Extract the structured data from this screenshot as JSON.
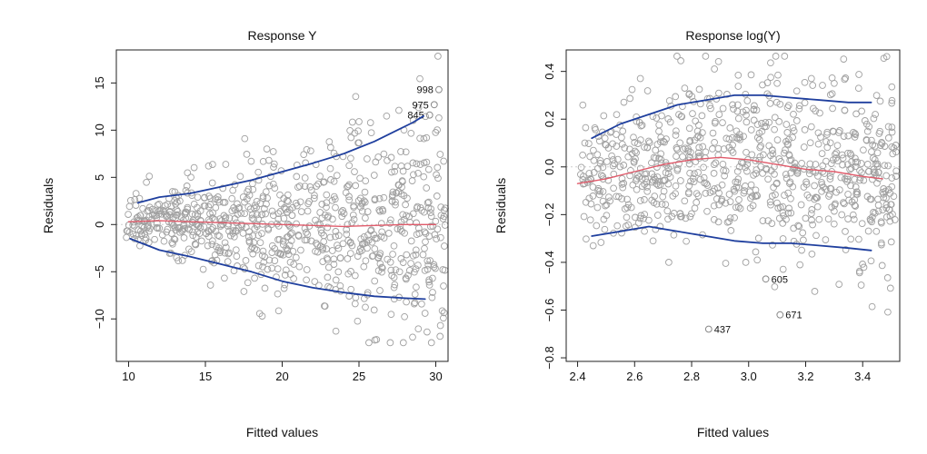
{
  "chart_data": [
    {
      "type": "scatter",
      "title": "Response Y",
      "xlabel": "Fitted values",
      "ylabel": "Residuals",
      "xlim": [
        9.2,
        30.8
      ],
      "ylim": [
        -14.5,
        18.5
      ],
      "xticks": [
        10,
        15,
        20,
        25,
        30
      ],
      "xtick_labels": [
        "10",
        "15",
        "20",
        "25",
        "30"
      ],
      "yticks": [
        -10,
        -5,
        0,
        5,
        10,
        15
      ],
      "ytick_labels": [
        "−10",
        "−5",
        "0",
        "5",
        "10",
        "15"
      ],
      "reference_line": 0,
      "point_seed": 7,
      "point_count": 820,
      "colors": {
        "points": "#a0a0a0",
        "smooth": "#e05a6a",
        "band": "#1f3f9e",
        "frame": "#222222",
        "reference": "#cfcfcf"
      },
      "smooth_line": {
        "x": [
          10,
          12,
          14,
          16,
          18,
          20,
          22,
          24,
          26,
          28,
          30
        ],
        "y": [
          0.3,
          0.4,
          0.3,
          0.2,
          0.1,
          0.0,
          -0.1,
          -0.2,
          -0.1,
          0.0,
          0.0
        ]
      },
      "upper_band": {
        "x": [
          10.6,
          12,
          14,
          16,
          18,
          20,
          22,
          24,
          26,
          27.5,
          28.5,
          29.2
        ],
        "y": [
          2.3,
          2.9,
          3.3,
          4.0,
          4.7,
          5.6,
          6.5,
          7.5,
          8.8,
          10.0,
          10.8,
          11.5
        ]
      },
      "lower_band": {
        "x": [
          10.1,
          12,
          14,
          16,
          18,
          20,
          22,
          24,
          26,
          28,
          29.3
        ],
        "y": [
          -1.5,
          -2.7,
          -3.4,
          -4.2,
          -5.0,
          -6.0,
          -6.7,
          -7.2,
          -7.6,
          -7.8,
          -7.9
        ]
      },
      "highlighted_points": [
        {
          "label": "998",
          "x": 30.2,
          "y": 14.3
        },
        {
          "label": "975",
          "x": 29.9,
          "y": 12.7
        },
        {
          "label": "845",
          "x": 29.6,
          "y": 11.6
        }
      ],
      "extra_points": [
        {
          "x": 23.5,
          "y": -11.3
        },
        {
          "x": 18.7,
          "y": -9.7
        },
        {
          "x": 19.0,
          "y": 8.0
        },
        {
          "x": 25.0,
          "y": 10.9
        },
        {
          "x": 26.8,
          "y": 11.5
        },
        {
          "x": 27.6,
          "y": 12.1
        },
        {
          "x": 28.6,
          "y": -8.4
        },
        {
          "x": 30.2,
          "y": 11.3
        },
        {
          "x": 29.4,
          "y": 9.2
        }
      ]
    },
    {
      "type": "scatter",
      "title": "Response log(Y)",
      "xlabel": "Fitted values",
      "ylabel": "Residuals",
      "xlim": [
        2.36,
        3.53
      ],
      "ylim": [
        -0.815,
        0.49
      ],
      "xticks": [
        2.4,
        2.6,
        2.8,
        3.0,
        3.2,
        3.4
      ],
      "xtick_labels": [
        "2.4",
        "2.6",
        "2.8",
        "3.0",
        "3.2",
        "3.4"
      ],
      "yticks": [
        -0.8,
        -0.6,
        -0.4,
        -0.2,
        0.0,
        0.2,
        0.4
      ],
      "ytick_labels": [
        "−0.8",
        "−0.6",
        "−0.4",
        "−0.2",
        "0.0",
        "0.2",
        "0.4"
      ],
      "reference_line": 0,
      "point_seed": 13,
      "point_count": 820,
      "colors": {
        "points": "#a0a0a0",
        "smooth": "#e05a6a",
        "band": "#1f3f9e",
        "frame": "#222222",
        "reference": "#cfcfcf"
      },
      "smooth_line": {
        "x": [
          2.4,
          2.5,
          2.6,
          2.7,
          2.8,
          2.9,
          3.0,
          3.1,
          3.2,
          3.3,
          3.4,
          3.47
        ],
        "y": [
          -0.07,
          -0.05,
          -0.02,
          0.01,
          0.03,
          0.04,
          0.03,
          0.01,
          -0.01,
          -0.02,
          -0.04,
          -0.05
        ]
      },
      "upper_band": {
        "x": [
          2.45,
          2.55,
          2.65,
          2.75,
          2.85,
          2.95,
          3.05,
          3.15,
          3.25,
          3.35,
          3.43
        ],
        "y": [
          0.12,
          0.18,
          0.22,
          0.26,
          0.28,
          0.3,
          0.3,
          0.29,
          0.28,
          0.27,
          0.27
        ]
      },
      "lower_band": {
        "x": [
          2.45,
          2.55,
          2.65,
          2.75,
          2.85,
          2.95,
          3.05,
          3.15,
          3.25,
          3.35,
          3.43
        ],
        "y": [
          -0.29,
          -0.27,
          -0.25,
          -0.27,
          -0.29,
          -0.31,
          -0.32,
          -0.32,
          -0.33,
          -0.34,
          -0.35
        ]
      },
      "highlighted_points": [
        {
          "label": "605",
          "x": 3.06,
          "y": -0.47
        },
        {
          "label": "671",
          "x": 3.11,
          "y": -0.62
        },
        {
          "label": "437",
          "x": 2.86,
          "y": -0.68
        }
      ],
      "extra_points": [
        {
          "x": 2.88,
          "y": 0.41
        },
        {
          "x": 2.62,
          "y": 0.37
        },
        {
          "x": 3.22,
          "y": 0.37
        },
        {
          "x": 3.1,
          "y": 0.35
        },
        {
          "x": 3.3,
          "y": 0.35
        },
        {
          "x": 2.99,
          "y": -0.4
        },
        {
          "x": 3.03,
          "y": -0.39
        },
        {
          "x": 2.72,
          "y": -0.4
        },
        {
          "x": 3.18,
          "y": -0.41
        }
      ]
    }
  ]
}
